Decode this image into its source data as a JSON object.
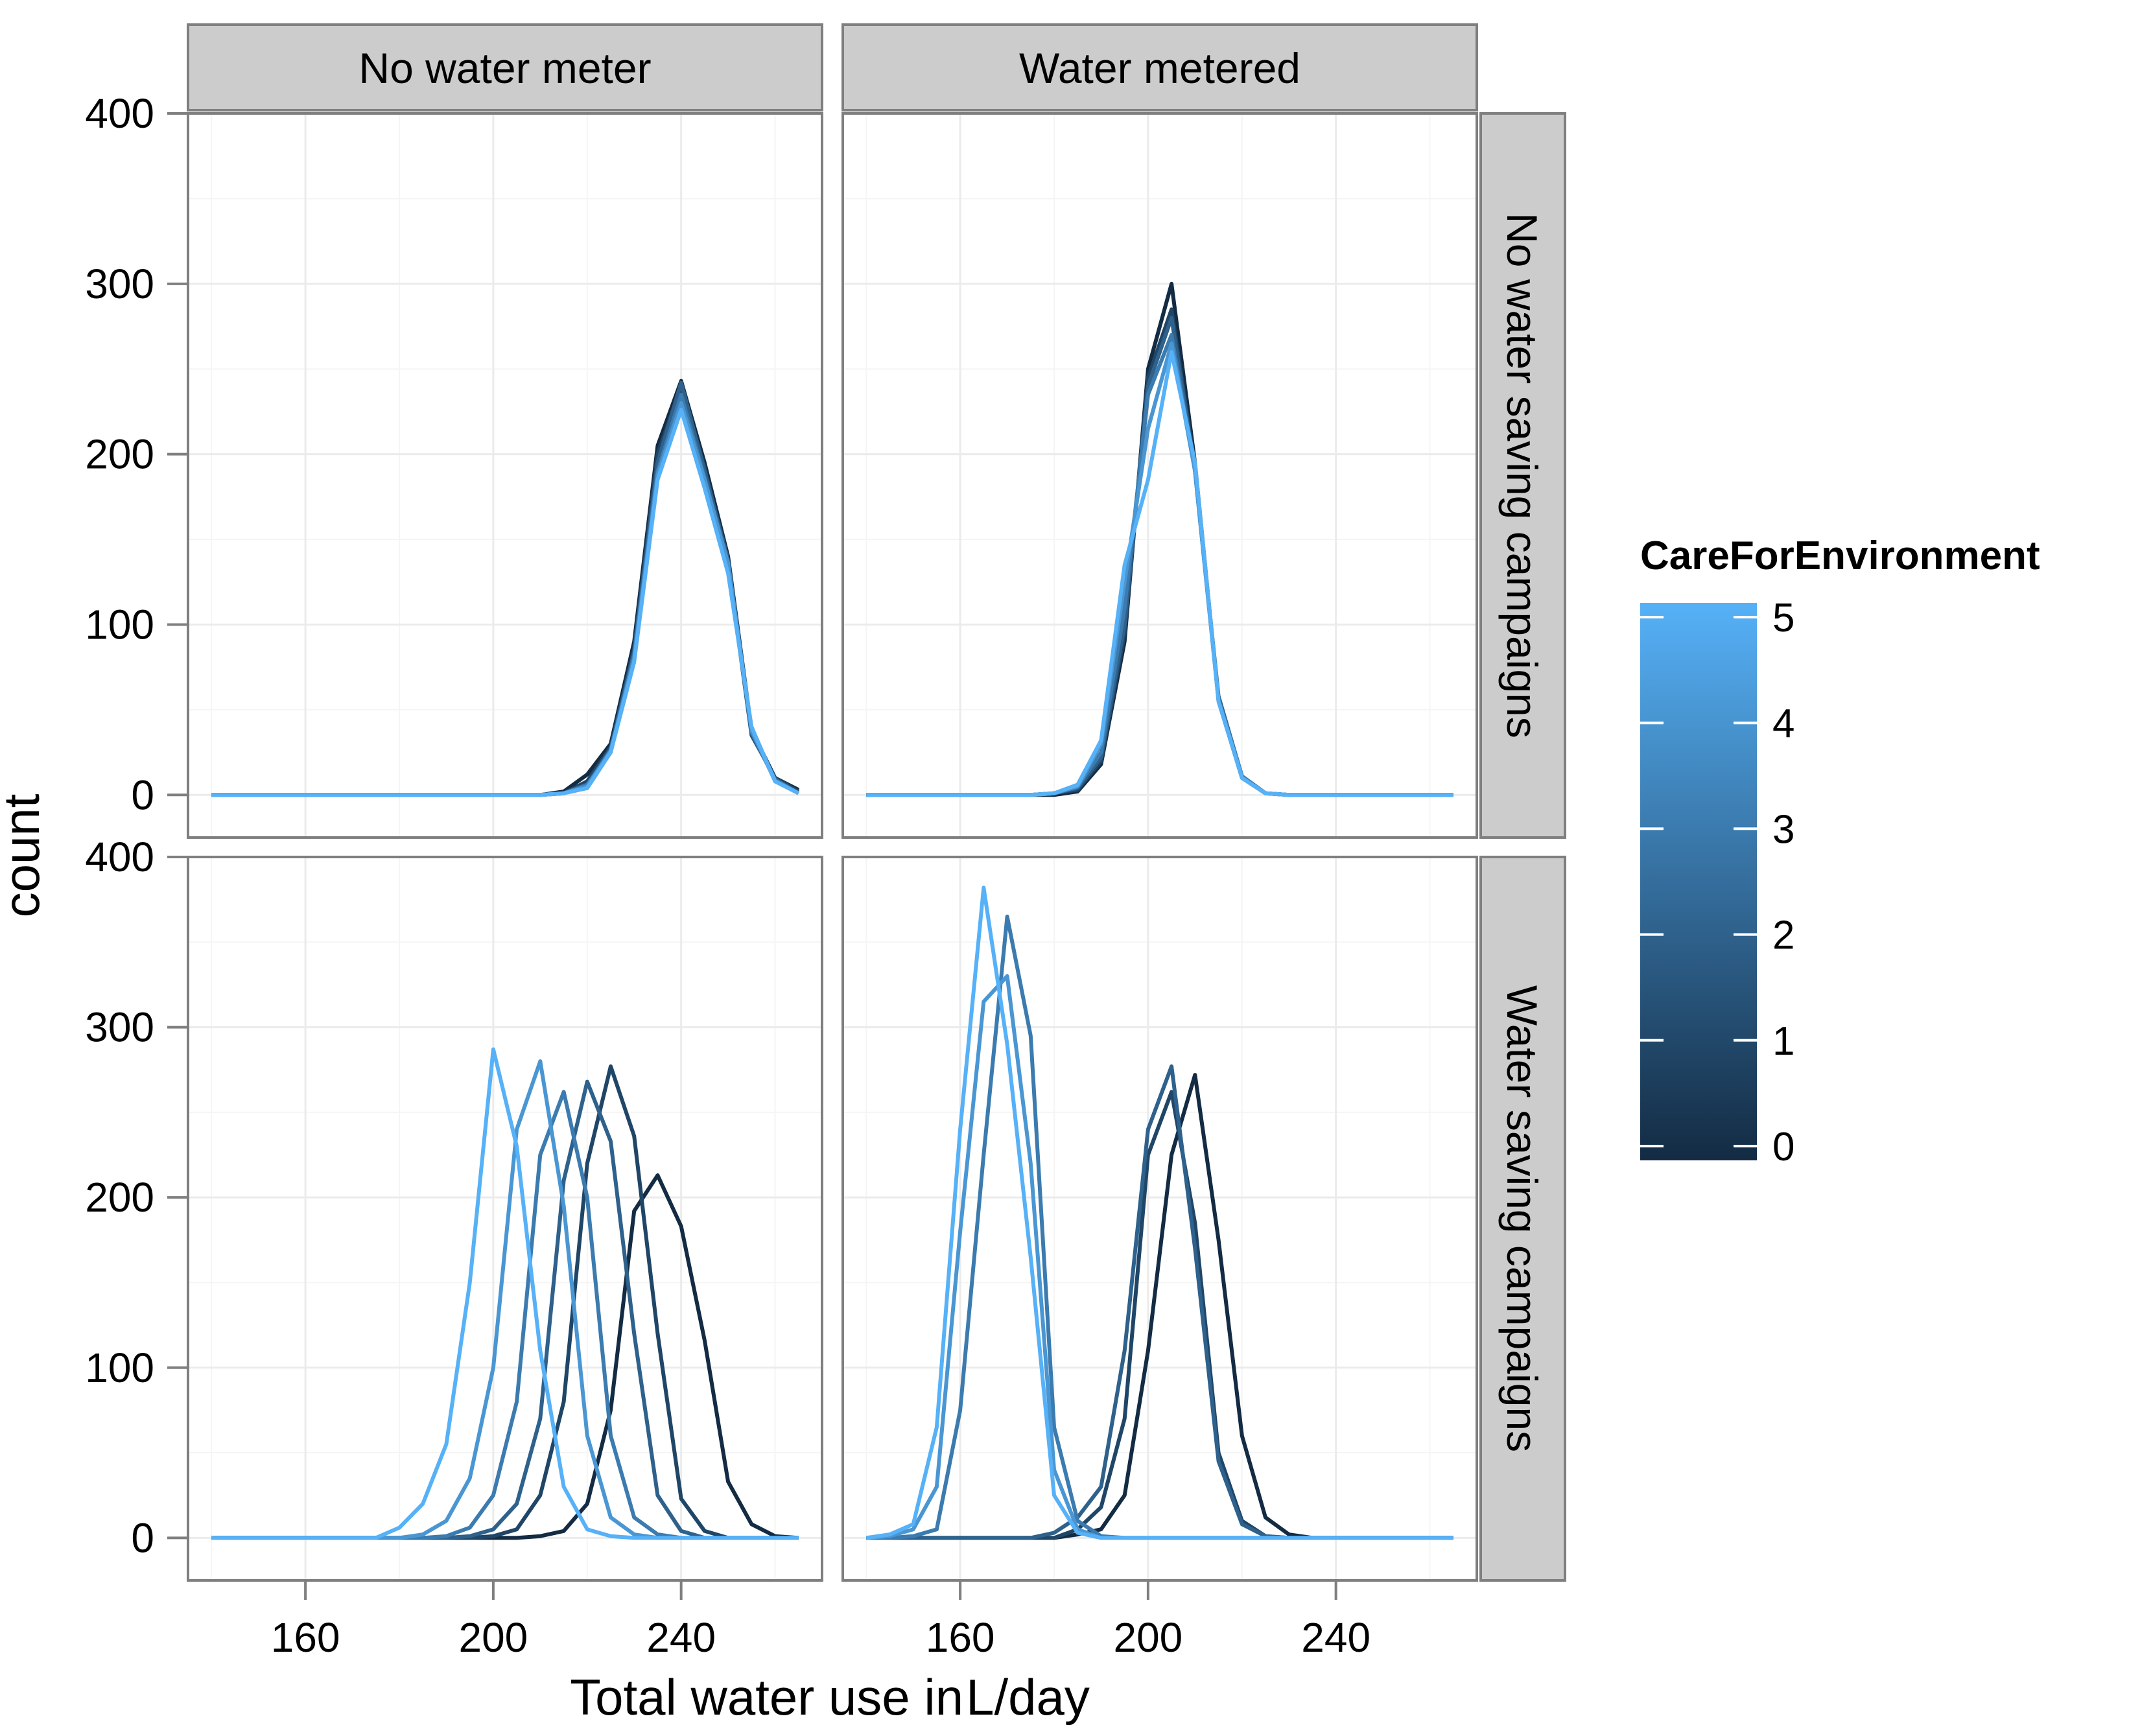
{
  "chart_data": {
    "type": "line",
    "subtype": "frequency-polygon",
    "xlabel_prefix": "Total water use in",
    "xlabel_unit": "L/day",
    "ylabel": "count",
    "x_range": [
      135,
      270
    ],
    "y_range": [
      -25,
      400
    ],
    "xticks": [
      160,
      200,
      240
    ],
    "yticks": [
      0,
      100,
      200,
      300,
      400
    ],
    "col_labels": [
      "No water meter",
      "Water metered"
    ],
    "row_labels": [
      "No water saving campaigns",
      "Water saving campaigns"
    ],
    "legend": {
      "title": "CareForEnvironment",
      "ticks": [
        "0",
        "1",
        "2",
        "3",
        "4",
        "5"
      ],
      "low_color": "#132B43",
      "high_color": "#56B1F7"
    },
    "colors": {
      "panel_border": "#7f7f7f",
      "strip_fill": "#cccccc",
      "grid_major": "#ebebeb",
      "grid_minor": "#f5f5f5"
    },
    "x_bins": [
      140,
      145,
      150,
      155,
      160,
      165,
      170,
      175,
      180,
      185,
      190,
      195,
      200,
      205,
      210,
      215,
      220,
      225,
      230,
      235,
      240,
      245,
      250,
      255,
      260,
      265,
      270
    ],
    "panels": [
      {
        "row": "No water saving campaigns",
        "col": "No water meter",
        "series": [
          {
            "care": 0,
            "values": [
              0,
              0,
              0,
              0,
              0,
              0,
              0,
              0,
              0,
              0,
              0,
              0,
              0,
              0,
              0,
              2,
              12,
              30,
              90,
              205,
              243,
              195,
              140,
              38,
              10,
              3,
              0
            ]
          },
          {
            "care": 1,
            "values": [
              0,
              0,
              0,
              0,
              0,
              0,
              0,
              0,
              0,
              0,
              0,
              0,
              0,
              0,
              0,
              1,
              8,
              28,
              86,
              200,
              240,
              192,
              135,
              35,
              10,
              2,
              0
            ]
          },
          {
            "care": 2,
            "values": [
              0,
              0,
              0,
              0,
              0,
              0,
              0,
              0,
              0,
              0,
              0,
              0,
              0,
              0,
              0,
              1,
              6,
              27,
              84,
              195,
              242,
              190,
              138,
              36,
              9,
              1,
              0
            ]
          },
          {
            "care": 3,
            "values": [
              0,
              0,
              0,
              0,
              0,
              0,
              0,
              0,
              0,
              0,
              0,
              0,
              0,
              0,
              0,
              1,
              6,
              25,
              82,
              190,
              235,
              186,
              135,
              37,
              9,
              1,
              0
            ]
          },
          {
            "care": 4,
            "values": [
              0,
              0,
              0,
              0,
              0,
              0,
              0,
              0,
              0,
              0,
              0,
              0,
              0,
              0,
              0,
              1,
              5,
              26,
              80,
              188,
              230,
              185,
              136,
              38,
              8,
              1,
              0
            ]
          },
          {
            "care": 5,
            "values": [
              0,
              0,
              0,
              0,
              0,
              0,
              0,
              0,
              0,
              0,
              0,
              0,
              0,
              0,
              0,
              1,
              4,
              25,
              78,
              185,
              226,
              180,
              130,
              40,
              8,
              1,
              0
            ]
          }
        ]
      },
      {
        "row": "No water saving campaigns",
        "col": "Water metered",
        "series": [
          {
            "care": 0,
            "values": [
              0,
              0,
              0,
              0,
              0,
              0,
              0,
              0,
              0,
              2,
              18,
              90,
              250,
              300,
              195,
              55,
              10,
              1,
              0,
              0,
              0,
              0,
              0,
              0,
              0,
              0,
              0
            ]
          },
          {
            "care": 1,
            "values": [
              0,
              0,
              0,
              0,
              0,
              0,
              0,
              0,
              1,
              3,
              20,
              95,
              245,
              285,
              192,
              56,
              10,
              1,
              0,
              0,
              0,
              0,
              0,
              0,
              0,
              0,
              0
            ]
          },
          {
            "care": 2,
            "values": [
              0,
              0,
              0,
              0,
              0,
              0,
              0,
              0,
              1,
              4,
              22,
              100,
              240,
              280,
              190,
              58,
              11,
              1,
              0,
              0,
              0,
              0,
              0,
              0,
              0,
              0,
              0
            ]
          },
          {
            "care": 3,
            "values": [
              0,
              0,
              0,
              0,
              0,
              0,
              0,
              0,
              1,
              5,
              25,
              110,
              235,
              270,
              190,
              56,
              11,
              1,
              0,
              0,
              0,
              0,
              0,
              0,
              0,
              0,
              0
            ]
          },
          {
            "care": 4,
            "values": [
              0,
              0,
              0,
              0,
              0,
              0,
              0,
              0,
              1,
              5,
              30,
              125,
              215,
              265,
              190,
              55,
              10,
              1,
              0,
              0,
              0,
              0,
              0,
              0,
              0,
              0,
              0
            ]
          },
          {
            "care": 5,
            "values": [
              0,
              0,
              0,
              0,
              0,
              0,
              0,
              0,
              1,
              6,
              32,
              135,
              185,
              260,
              195,
              55,
              10,
              1,
              0,
              0,
              0,
              0,
              0,
              0,
              0,
              0,
              0
            ]
          }
        ]
      },
      {
        "row": "Water saving campaigns",
        "col": "No water meter",
        "series": [
          {
            "care": 0,
            "values": [
              0,
              0,
              0,
              0,
              0,
              0,
              0,
              0,
              0,
              0,
              0,
              0,
              0,
              0,
              1,
              4,
              20,
              75,
              192,
              213,
              183,
              116,
              33,
              8,
              1,
              0,
              0
            ]
          },
          {
            "care": 1,
            "values": [
              0,
              0,
              0,
              0,
              0,
              0,
              0,
              0,
              0,
              0,
              0,
              0,
              1,
              5,
              25,
              80,
              220,
              277,
              236,
              120,
              23,
              4,
              0,
              0,
              0,
              0,
              0
            ]
          },
          {
            "care": 2,
            "values": [
              0,
              0,
              0,
              0,
              0,
              0,
              0,
              0,
              0,
              0,
              0,
              1,
              5,
              20,
              70,
              210,
              268,
              233,
              120,
              25,
              4,
              0,
              0,
              0,
              0,
              0,
              0
            ]
          },
          {
            "care": 3,
            "values": [
              0,
              0,
              0,
              0,
              0,
              0,
              0,
              0,
              0,
              0,
              1,
              6,
              25,
              80,
              225,
              262,
              200,
              60,
              12,
              2,
              0,
              0,
              0,
              0,
              0,
              0,
              0
            ]
          },
          {
            "care": 4,
            "values": [
              0,
              0,
              0,
              0,
              0,
              0,
              0,
              0,
              0,
              2,
              10,
              35,
              100,
              240,
              280,
              195,
              60,
              12,
              2,
              0,
              0,
              0,
              0,
              0,
              0,
              0,
              0
            ]
          },
          {
            "care": 5,
            "values": [
              0,
              0,
              0,
              0,
              0,
              0,
              0,
              0,
              6,
              20,
              55,
              150,
              287,
              230,
              110,
              30,
              5,
              1,
              0,
              0,
              0,
              0,
              0,
              0,
              0,
              0,
              0
            ]
          }
        ]
      },
      {
        "row": "Water saving campaigns",
        "col": "Water metered",
        "series": [
          {
            "care": 0,
            "values": [
              0,
              0,
              0,
              0,
              0,
              0,
              0,
              0,
              0,
              2,
              5,
              25,
              110,
              225,
              272,
              175,
              60,
              12,
              2,
              0,
              0,
              0,
              0,
              0,
              0,
              0,
              0
            ]
          },
          {
            "care": 1,
            "values": [
              0,
              0,
              0,
              0,
              0,
              0,
              0,
              0,
              0,
              5,
              18,
              70,
              225,
              262,
              185,
              50,
              10,
              1,
              0,
              0,
              0,
              0,
              0,
              0,
              0,
              0,
              0
            ]
          },
          {
            "care": 2,
            "values": [
              0,
              0,
              0,
              0,
              0,
              0,
              0,
              0,
              3,
              12,
              30,
              110,
              240,
              277,
              170,
              45,
              8,
              1,
              0,
              0,
              0,
              0,
              0,
              0,
              0,
              0,
              0
            ]
          },
          {
            "care": 3,
            "values": [
              0,
              0,
              1,
              5,
              75,
              225,
              365,
              295,
              65,
              10,
              1,
              0,
              0,
              0,
              0,
              0,
              0,
              0,
              0,
              0,
              0,
              0,
              0,
              0,
              0,
              0,
              0
            ]
          },
          {
            "care": 4,
            "values": [
              0,
              1,
              5,
              30,
              180,
              315,
              330,
              220,
              40,
              5,
              0,
              0,
              0,
              0,
              0,
              0,
              0,
              0,
              0,
              0,
              0,
              0,
              0,
              0,
              0,
              0,
              0
            ]
          },
          {
            "care": 5,
            "values": [
              0,
              2,
              8,
              65,
              240,
              382,
              290,
              165,
              25,
              3,
              0,
              0,
              0,
              0,
              0,
              0,
              0,
              0,
              0,
              0,
              0,
              0,
              0,
              0,
              0,
              0,
              0
            ]
          }
        ]
      }
    ]
  }
}
